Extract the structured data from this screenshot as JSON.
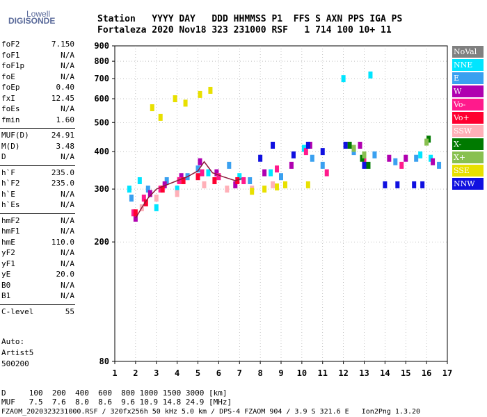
{
  "logo": {
    "line1": "Lowell",
    "line2": "DIGISONDE"
  },
  "header": {
    "row1": "Station   YYYY DAY   DDD HHMMSS P1  FFS S AXN PPS IGA PS",
    "row2": "Fortaleza 2020 Nov18 323 231000 RSF   1 714 100 10+ 11"
  },
  "params": [
    {
      "group": 1,
      "name": "foF2",
      "value": "7.150"
    },
    {
      "group": 1,
      "name": "foF1",
      "value": "N/A"
    },
    {
      "group": 1,
      "name": "foF1p",
      "value": "N/A"
    },
    {
      "group": 1,
      "name": "foE",
      "value": "N/A"
    },
    {
      "group": 1,
      "name": "foEp",
      "value": "0.40"
    },
    {
      "group": 1,
      "name": "fxI",
      "value": "12.45"
    },
    {
      "group": 1,
      "name": "foEs",
      "value": "N/A"
    },
    {
      "group": 1,
      "name": "fmin",
      "value": "1.60"
    },
    {
      "group": 2,
      "name": "MUF(D)",
      "value": "24.91"
    },
    {
      "group": 2,
      "name": "M(D)",
      "value": "3.48"
    },
    {
      "group": 2,
      "name": "D",
      "value": "N/A"
    },
    {
      "group": 3,
      "name": "h`F",
      "value": "235.0"
    },
    {
      "group": 3,
      "name": "h`F2",
      "value": "235.0"
    },
    {
      "group": 3,
      "name": "h`E",
      "value": "N/A"
    },
    {
      "group": 3,
      "name": "h`Es",
      "value": "N/A"
    },
    {
      "group": 4,
      "name": "hmF2",
      "value": "N/A"
    },
    {
      "group": 4,
      "name": "hmF1",
      "value": "N/A"
    },
    {
      "group": 4,
      "name": "hmE",
      "value": "110.0"
    },
    {
      "group": 4,
      "name": "yF2",
      "value": "N/A"
    },
    {
      "group": 4,
      "name": "yF1",
      "value": "N/A"
    },
    {
      "group": 4,
      "name": "yE",
      "value": "20.0"
    },
    {
      "group": 4,
      "name": "B0",
      "value": "N/A"
    },
    {
      "group": 4,
      "name": "B1",
      "value": "N/A"
    },
    {
      "group": 5,
      "name": "C-level",
      "value": "55"
    }
  ],
  "autoscale": {
    "line1": "Auto:",
    "line2": "Artist5",
    "line3": "500200"
  },
  "legend": [
    {
      "label": "NoVal",
      "color": "#808080"
    },
    {
      "label": "NNE",
      "color": "#00e5ff"
    },
    {
      "label": "E",
      "color": "#3aa0f0"
    },
    {
      "label": "W",
      "color": "#b000b0"
    },
    {
      "label": "Vo-",
      "color": "#ff1a8c"
    },
    {
      "label": "Vo+",
      "color": "#ff0030"
    },
    {
      "label": "SSW",
      "color": "#ffb0b8"
    },
    {
      "label": "X-",
      "color": "#007a00"
    },
    {
      "label": "X+",
      "color": "#88c050"
    },
    {
      "label": "SSE",
      "color": "#e8e000"
    },
    {
      "label": "NNW",
      "color": "#1010e0"
    }
  ],
  "bottom": {
    "row1": "D     100  200  400  600  800 1000 1500 3000 [km]",
    "row2": "MUF   7.5  7.6  8.0  8.6  9.6 10.9 14.8 24.9 [MHz]",
    "footer": "FZAOM_2020323231000.RSF / 320fx256h 50 kHz 5.0 km / DPS-4 FZAOM 904 / 3.9 S 321.6 E   Ion2Png 1.3.20"
  },
  "chart_data": {
    "type": "scatter",
    "title": "",
    "xlabel": "",
    "ylabel": "",
    "xlim": [
      1,
      17
    ],
    "ylim": [
      80,
      900
    ],
    "y_scale": "log",
    "x_ticks": [
      1,
      2,
      3,
      4,
      5,
      6,
      7,
      8,
      9,
      10,
      11,
      12,
      13,
      14,
      15,
      16,
      17
    ],
    "y_ticks": [
      80,
      200,
      300,
      400,
      500,
      600,
      700,
      800,
      900
    ],
    "grid": "dotted",
    "legend_position": "right",
    "series": [
      {
        "name": "NNE",
        "points": [
          [
            1.7,
            300
          ],
          [
            2.2,
            320
          ],
          [
            3.0,
            260
          ],
          [
            4.0,
            300
          ],
          [
            5.5,
            340
          ],
          [
            7.0,
            330
          ],
          [
            8.5,
            340
          ],
          [
            10.1,
            410
          ],
          [
            12.0,
            700
          ],
          [
            13.3,
            720
          ],
          [
            15.7,
            390
          ],
          [
            16.2,
            380
          ]
        ]
      },
      {
        "name": "E",
        "points": [
          [
            1.8,
            280
          ],
          [
            2.6,
            300
          ],
          [
            3.5,
            320
          ],
          [
            4.5,
            330
          ],
          [
            5.0,
            350
          ],
          [
            6.5,
            360
          ],
          [
            7.5,
            320
          ],
          [
            9.0,
            330
          ],
          [
            10.5,
            380
          ],
          [
            11.0,
            360
          ],
          [
            12.5,
            400
          ],
          [
            13.5,
            390
          ],
          [
            14.5,
            370
          ],
          [
            15.5,
            380
          ],
          [
            16.6,
            360
          ]
        ]
      },
      {
        "name": "W",
        "points": [
          [
            2.0,
            240
          ],
          [
            2.7,
            290
          ],
          [
            3.4,
            310
          ],
          [
            4.2,
            330
          ],
          [
            5.1,
            370
          ],
          [
            5.9,
            340
          ],
          [
            6.8,
            310
          ],
          [
            8.2,
            340
          ],
          [
            9.5,
            360
          ],
          [
            10.4,
            420
          ],
          [
            12.8,
            420
          ],
          [
            14.2,
            380
          ],
          [
            15.0,
            380
          ],
          [
            16.3,
            370
          ]
        ]
      },
      {
        "name": "Vo-",
        "points": [
          [
            1.9,
            250
          ],
          [
            2.4,
            280
          ],
          [
            3.2,
            300
          ],
          [
            4.1,
            320
          ],
          [
            5.2,
            340
          ],
          [
            6.0,
            330
          ],
          [
            7.2,
            320
          ],
          [
            8.8,
            350
          ],
          [
            10.2,
            400
          ],
          [
            11.2,
            340
          ],
          [
            13.0,
            370
          ],
          [
            14.8,
            360
          ]
        ]
      },
      {
        "name": "Vo+",
        "points": [
          [
            2.0,
            250
          ],
          [
            2.5,
            270
          ],
          [
            3.3,
            300
          ],
          [
            4.3,
            320
          ],
          [
            5.0,
            330
          ],
          [
            5.8,
            320
          ],
          [
            6.9,
            320
          ]
        ]
      },
      {
        "name": "SSW",
        "points": [
          [
            2.3,
            260
          ],
          [
            3.0,
            280
          ],
          [
            4.0,
            290
          ],
          [
            5.3,
            310
          ],
          [
            6.4,
            300
          ],
          [
            7.6,
            300
          ],
          [
            8.6,
            310
          ]
        ]
      },
      {
        "name": "X-",
        "points": [
          [
            12.3,
            420
          ],
          [
            12.9,
            380
          ],
          [
            13.2,
            360
          ],
          [
            16.1,
            440
          ]
        ]
      },
      {
        "name": "X+",
        "points": [
          [
            12.5,
            410
          ],
          [
            13.0,
            390
          ],
          [
            16.0,
            430
          ]
        ]
      },
      {
        "name": "SSE",
        "points": [
          [
            2.8,
            560
          ],
          [
            3.2,
            520
          ],
          [
            3.9,
            600
          ],
          [
            4.4,
            580
          ],
          [
            5.1,
            620
          ],
          [
            5.6,
            640
          ],
          [
            7.6,
            295
          ],
          [
            8.2,
            300
          ],
          [
            8.8,
            305
          ],
          [
            9.2,
            310
          ],
          [
            10.3,
            310
          ]
        ]
      },
      {
        "name": "NNW",
        "points": [
          [
            8.0,
            380
          ],
          [
            8.6,
            420
          ],
          [
            9.6,
            390
          ],
          [
            10.3,
            420
          ],
          [
            11.0,
            400
          ],
          [
            12.1,
            420
          ],
          [
            13.0,
            360
          ],
          [
            14.0,
            310
          ],
          [
            14.6,
            310
          ],
          [
            15.4,
            310
          ],
          [
            15.8,
            310
          ]
        ]
      }
    ],
    "annotation_line": {
      "points": [
        [
          2.0,
          240
        ],
        [
          2.3,
          260
        ],
        [
          2.6,
          280
        ],
        [
          3.0,
          300
        ],
        [
          3.5,
          310
        ],
        [
          4.0,
          320
        ],
        [
          4.5,
          330
        ],
        [
          5.0,
          345
        ],
        [
          5.3,
          370
        ],
        [
          5.7,
          340
        ],
        [
          6.2,
          330
        ],
        [
          6.8,
          320
        ],
        [
          7.1,
          325
        ]
      ]
    }
  }
}
